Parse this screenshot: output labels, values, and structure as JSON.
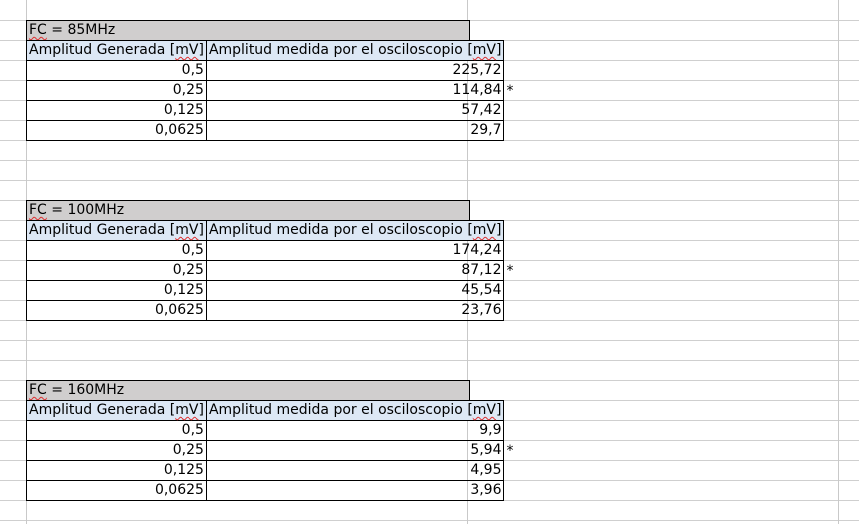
{
  "blocks": [
    {
      "title_prefix": "FC",
      "title_rest": " = 85MHz",
      "header_generada_pre": "Amplitud Generada [",
      "header_unit": "mV",
      "header_generada_post": "]",
      "header_medida_pre": "Amplitud medida por el osciloscopio [",
      "header_medida_post": "]",
      "rows": [
        {
          "generada": "0,5",
          "medida": "225,72",
          "mark": ""
        },
        {
          "generada": "0,25",
          "medida": "114,84",
          "mark": "*"
        },
        {
          "generada": "0,125",
          "medida": "57,42",
          "mark": ""
        },
        {
          "generada": "0,0625",
          "medida": "29,7",
          "mark": ""
        }
      ]
    },
    {
      "title_prefix": "FC",
      "title_rest": " = 100MHz",
      "header_generada_pre": "Amplitud Generada [",
      "header_unit": "mV",
      "header_generada_post": "]",
      "header_medida_pre": "Amplitud medida por el osciloscopio [",
      "header_medida_post": "]",
      "rows": [
        {
          "generada": "0,5",
          "medida": "174,24",
          "mark": ""
        },
        {
          "generada": "0,25",
          "medida": "87,12",
          "mark": "*"
        },
        {
          "generada": "0,125",
          "medida": "45,54",
          "mark": ""
        },
        {
          "generada": "0,0625",
          "medida": "23,76",
          "mark": ""
        }
      ]
    },
    {
      "title_prefix": "FC",
      "title_rest": " = 160MHz",
      "header_generada_pre": "Amplitud Generada [",
      "header_unit": "mV",
      "header_generada_post": "]",
      "header_medida_pre": "Amplitud medida por el osciloscopio [",
      "header_medida_post": "]",
      "rows": [
        {
          "generada": "0,5",
          "medida": "9,9",
          "mark": ""
        },
        {
          "generada": "0,25",
          "medida": "5,94",
          "mark": "*"
        },
        {
          "generada": "0,125",
          "medida": "4,95",
          "mark": ""
        },
        {
          "generada": "0,0625",
          "medida": "3,96",
          "mark": ""
        }
      ]
    }
  ]
}
